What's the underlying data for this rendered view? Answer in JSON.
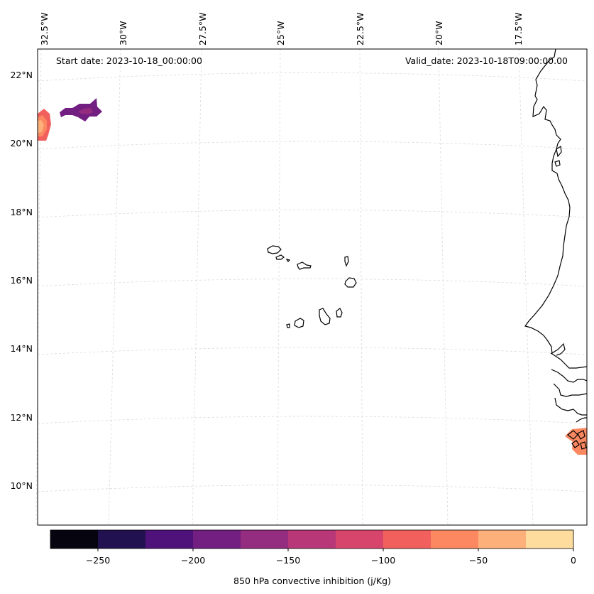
{
  "map": {
    "start_date": "Start date: 2023-10-18_00:00:00",
    "valid_date": "Valid_date: 2023-10-18T09:00:00.00",
    "lon_labels": [
      "32.5°W",
      "30°W",
      "27.5°W",
      "25°W",
      "22.5°W",
      "20°W",
      "17.5°W"
    ],
    "lat_labels": [
      "22°N",
      "20°N",
      "18°N",
      "16°N",
      "14°N",
      "12°N",
      "10°N"
    ]
  },
  "colorbar": {
    "label": "850 hPa convective inhibition (j/Kg)",
    "ticks": [
      "−250",
      "−200",
      "−150",
      "−100",
      "−50",
      "0"
    ],
    "levels": [
      -275,
      -250,
      -225,
      -200,
      -175,
      -150,
      -125,
      -100,
      -75,
      -50,
      -25,
      0
    ],
    "colors": [
      "#05040f",
      "#221150",
      "#4f127b",
      "#721f81",
      "#942c80",
      "#b73779",
      "#d8456c",
      "#f1605d",
      "#fb8861",
      "#feb07a",
      "#fddc9e"
    ]
  },
  "colors": {
    "grid": "#d9d9d9",
    "coast": "#000000",
    "frame": "#000000"
  }
}
